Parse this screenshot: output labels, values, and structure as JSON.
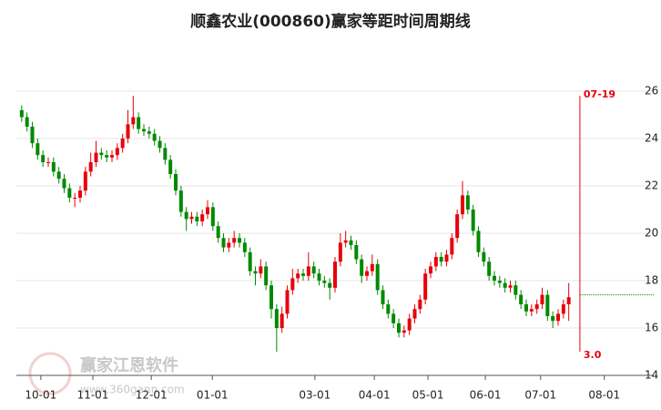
{
  "chart_data": {
    "type": "candlestick",
    "title": "顺鑫农业(000860)赢家等距时间周期线",
    "x": [
      -2,
      -1,
      0,
      1,
      2,
      3,
      4,
      5,
      6,
      7,
      8,
      9,
      10,
      11,
      12,
      13,
      14,
      15,
      16,
      17,
      18,
      19,
      20,
      21,
      22,
      23,
      24,
      25,
      26,
      27,
      28,
      29,
      30,
      31,
      32,
      33,
      34,
      35,
      36,
      37,
      38,
      39,
      40,
      41,
      42,
      43,
      44,
      45,
      46,
      47,
      48,
      49,
      50,
      51,
      52,
      53,
      54,
      55,
      56,
      57,
      58,
      59,
      60,
      61,
      62,
      63,
      64,
      65,
      66,
      67,
      68,
      69,
      70,
      71,
      72,
      73,
      74,
      75,
      76,
      77,
      78,
      79,
      80,
      81,
      82,
      83,
      84,
      85,
      86,
      87,
      88,
      89,
      90,
      91,
      92,
      93,
      94,
      95,
      96,
      97,
      98,
      99,
      100,
      101
    ],
    "open": [
      25.2,
      24.9,
      24.5,
      23.8,
      23.3,
      23.0,
      23.0,
      22.6,
      22.3,
      21.9,
      21.5,
      21.5,
      21.8,
      22.6,
      23.0,
      23.4,
      23.3,
      23.2,
      23.3,
      23.6,
      24.0,
      24.6,
      24.9,
      24.4,
      24.3,
      24.2,
      23.9,
      23.6,
      23.1,
      22.5,
      21.8,
      20.9,
      20.6,
      20.7,
      20.5,
      20.8,
      21.1,
      20.3,
      19.8,
      19.4,
      19.6,
      19.8,
      19.6,
      19.2,
      18.4,
      18.3,
      18.6,
      17.8,
      16.8,
      16.0,
      16.6,
      17.6,
      18.1,
      18.3,
      18.2,
      18.6,
      18.3,
      18.0,
      17.9,
      17.7,
      18.8,
      19.6,
      19.7,
      19.5,
      18.9,
      18.2,
      18.4,
      18.7,
      17.6,
      17.0,
      16.6,
      16.2,
      15.8,
      15.9,
      16.4,
      16.8,
      17.2,
      18.3,
      18.6,
      19.0,
      18.8,
      19.1,
      19.8,
      20.8,
      21.6,
      21.0,
      20.1,
      19.2,
      18.8,
      18.2,
      18.0,
      17.9,
      17.7,
      17.8,
      17.4,
      17.0,
      16.7,
      16.8,
      17.0,
      17.4,
      16.5,
      16.3,
      16.6,
      17.0
    ],
    "high": [
      25.4,
      25.1,
      24.7,
      24.0,
      23.5,
      23.2,
      23.2,
      22.8,
      22.5,
      22.1,
      21.7,
      22.0,
      22.8,
      23.4,
      23.9,
      23.6,
      23.5,
      23.5,
      23.8,
      24.2,
      25.2,
      25.8,
      25.1,
      24.6,
      24.5,
      24.4,
      24.1,
      23.8,
      23.3,
      22.7,
      22.0,
      21.1,
      20.9,
      20.9,
      21.0,
      21.4,
      21.3,
      20.5,
      20.0,
      19.8,
      20.1,
      20.0,
      19.8,
      19.4,
      18.6,
      18.9,
      18.8,
      18.0,
      17.0,
      16.9,
      17.8,
      18.5,
      18.5,
      18.5,
      19.2,
      18.8,
      18.5,
      18.2,
      18.1,
      19.0,
      20.0,
      20.1,
      19.9,
      19.7,
      19.1,
      18.6,
      19.1,
      18.9,
      17.8,
      17.2,
      16.8,
      16.4,
      16.1,
      16.6,
      17.0,
      17.4,
      18.5,
      18.8,
      19.2,
      19.2,
      19.3,
      20.0,
      21.0,
      22.2,
      21.8,
      21.2,
      20.3,
      19.4,
      19.0,
      18.4,
      18.2,
      18.1,
      18.0,
      18.0,
      17.6,
      17.2,
      17.0,
      17.2,
      17.7,
      17.6,
      16.7,
      16.8,
      17.2,
      17.9
    ],
    "low": [
      24.7,
      24.3,
      23.6,
      23.1,
      22.8,
      22.8,
      22.4,
      22.1,
      21.7,
      21.3,
      21.1,
      21.3,
      21.6,
      22.4,
      22.8,
      23.1,
      23.0,
      23.0,
      23.1,
      23.4,
      23.8,
      24.4,
      24.2,
      24.1,
      24.0,
      23.7,
      23.4,
      22.9,
      22.3,
      21.6,
      20.7,
      20.1,
      20.4,
      20.3,
      20.3,
      20.6,
      20.1,
      19.6,
      19.2,
      19.2,
      19.4,
      19.4,
      19.0,
      18.2,
      17.8,
      18.1,
      17.6,
      16.4,
      15.0,
      15.8,
      16.4,
      17.4,
      17.9,
      18.0,
      18.0,
      18.1,
      17.8,
      17.7,
      17.2,
      17.5,
      18.6,
      19.4,
      19.3,
      18.7,
      17.9,
      18.0,
      18.2,
      17.4,
      16.8,
      16.4,
      16.0,
      15.6,
      15.6,
      15.7,
      16.2,
      16.6,
      17.0,
      18.1,
      18.4,
      18.6,
      18.6,
      18.9,
      19.6,
      20.6,
      20.8,
      19.9,
      19.0,
      18.6,
      18.0,
      17.8,
      17.7,
      17.5,
      17.5,
      17.2,
      16.8,
      16.5,
      16.5,
      16.6,
      16.8,
      16.3,
      16.0,
      16.1,
      16.4,
      16.3
    ],
    "close": [
      24.9,
      24.5,
      23.8,
      23.3,
      23.0,
      23.0,
      22.6,
      22.3,
      21.9,
      21.5,
      21.5,
      21.8,
      22.6,
      23.0,
      23.4,
      23.3,
      23.2,
      23.3,
      23.6,
      24.0,
      24.6,
      24.9,
      24.4,
      24.3,
      24.2,
      23.9,
      23.6,
      23.1,
      22.5,
      21.8,
      20.9,
      20.6,
      20.7,
      20.5,
      20.8,
      21.1,
      20.3,
      19.8,
      19.4,
      19.6,
      19.8,
      19.6,
      19.2,
      18.4,
      18.3,
      18.6,
      17.8,
      16.8,
      16.0,
      16.6,
      17.6,
      18.1,
      18.3,
      18.2,
      18.6,
      18.3,
      18.0,
      17.9,
      17.7,
      18.8,
      19.6,
      19.7,
      19.5,
      18.9,
      18.2,
      18.4,
      18.7,
      17.6,
      17.0,
      16.6,
      16.2,
      15.8,
      15.9,
      16.4,
      16.8,
      17.2,
      18.3,
      18.6,
      19.0,
      18.8,
      19.1,
      19.8,
      20.8,
      21.6,
      21.0,
      20.1,
      19.2,
      18.8,
      18.2,
      18.0,
      17.9,
      17.7,
      17.8,
      17.4,
      17.0,
      16.7,
      16.8,
      17.0,
      17.4,
      16.5,
      16.3,
      16.6,
      17.0,
      17.3
    ],
    "up_color": "#e8000b",
    "down_color": "#008a00",
    "xlim": [
      -3,
      117
    ],
    "xticks": [
      {
        "value": 1.6,
        "label": "10-01"
      },
      {
        "value": 11.4,
        "label": "11-01"
      },
      {
        "value": 22.4,
        "label": "12-01"
      },
      {
        "value": 33.9,
        "label": "01-01"
      },
      {
        "value": 53.2,
        "label": "03-01"
      },
      {
        "value": 64.4,
        "label": "04-01"
      },
      {
        "value": 74.5,
        "label": "05-01"
      },
      {
        "value": 85.3,
        "label": "06-01"
      },
      {
        "value": 95.7,
        "label": "07-01"
      },
      {
        "value": 107.7,
        "label": "08-01"
      }
    ],
    "ylim": [
      14,
      26
    ],
    "yticks": [
      14,
      16,
      18,
      20,
      22,
      24,
      26
    ],
    "grid": true,
    "vline": {
      "x": 103.1,
      "y": [
        15.0,
        25.8
      ],
      "color": "#e8000b",
      "labels": [
        "07-19",
        "3.0"
      ]
    },
    "hline": {
      "y": 17.4,
      "x_from": 103.1,
      "color": "#008a00"
    },
    "watermark": {
      "text": "赢家江恩软件",
      "url": "www.360gann.com"
    }
  }
}
